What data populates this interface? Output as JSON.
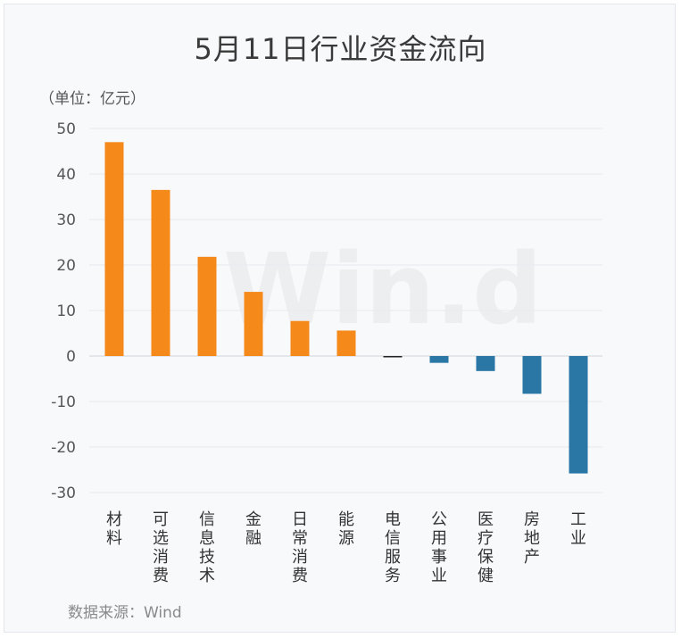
{
  "title": "5月11日行业资金流向",
  "unit_label": "（单位：亿元）",
  "source": "数据来源：Wind",
  "watermark": "Win.d",
  "colors": {
    "positive": "#f5891a",
    "negative": "#2a77a6",
    "neutral": "#222222",
    "grid": "#e6e9ee"
  },
  "chart_data": {
    "type": "bar",
    "title": "5月11日行业资金流向",
    "ylabel": "（单位：亿元）",
    "xlabel": "",
    "ylim": [
      -30,
      50
    ],
    "yticks": [
      50,
      40,
      30,
      20,
      10,
      0,
      -10,
      -20,
      -30
    ],
    "grid": true,
    "categories": [
      "材料",
      "可选消费",
      "信息技术",
      "金融",
      "日常消费",
      "能源",
      "电信服务",
      "公用事业",
      "医疗保健",
      "房地产",
      "工业"
    ],
    "values": [
      47.0,
      36.5,
      21.8,
      14.1,
      7.7,
      5.6,
      -0.2,
      -1.5,
      -3.3,
      -8.3,
      -25.8
    ]
  }
}
